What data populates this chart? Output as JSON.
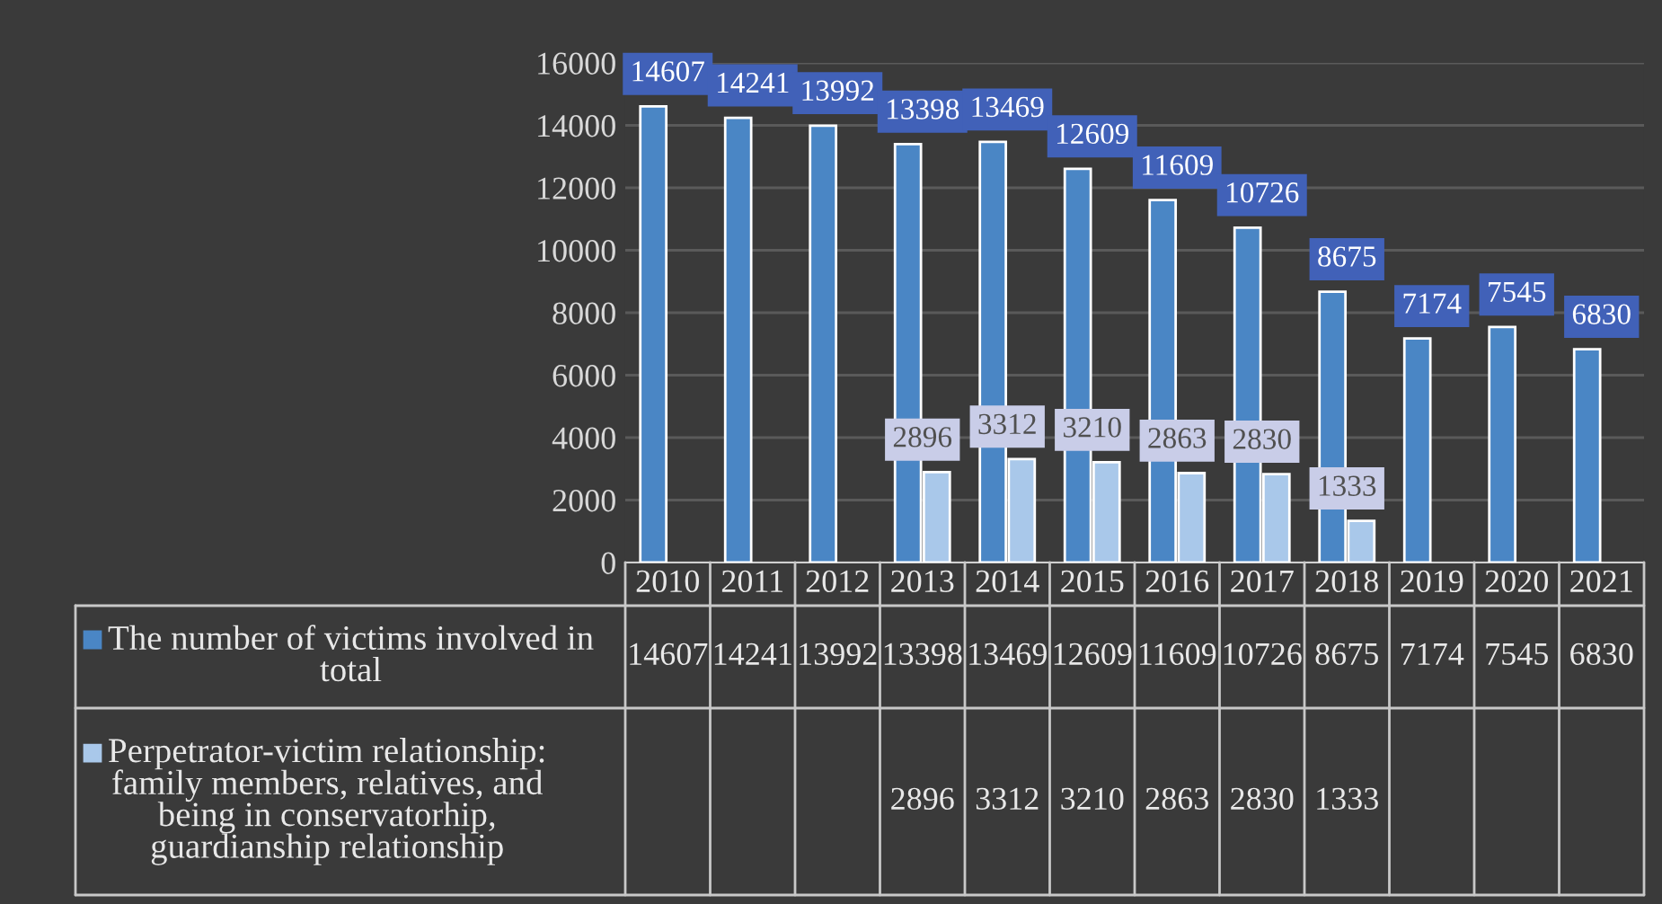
{
  "chart_data": {
    "type": "bar",
    "categories": [
      "2010",
      "2011",
      "2012",
      "2013",
      "2014",
      "2015",
      "2016",
      "2017",
      "2018",
      "2019",
      "2020",
      "2021"
    ],
    "series": [
      {
        "name": "The number of victims involved in total",
        "color": "#4a86c5",
        "values": [
          14607,
          14241,
          13992,
          13398,
          13469,
          12609,
          11609,
          10726,
          8675,
          7174,
          7545,
          6830
        ]
      },
      {
        "name": "Perpetrator-victim relationship: family members, relatives, and being in conservatorhip, guardianship relationship",
        "color": "#a9c8ea",
        "values": [
          null,
          null,
          null,
          2896,
          3312,
          3210,
          2863,
          2830,
          1333,
          null,
          null,
          null
        ]
      }
    ],
    "ylim": [
      0,
      16000
    ],
    "yticks": [
      0,
      2000,
      4000,
      6000,
      8000,
      10000,
      12000,
      14000,
      16000
    ],
    "grid": "y",
    "legend": "bottom",
    "data_labels": true,
    "annotations": [
      "14607",
      "14241",
      "13992",
      "13398",
      "13469",
      "12609",
      "11609",
      "10726",
      "8675",
      "7174",
      "7545",
      "6830",
      "2896",
      "3312",
      "3210",
      "2863",
      "2830",
      "1333"
    ]
  }
}
